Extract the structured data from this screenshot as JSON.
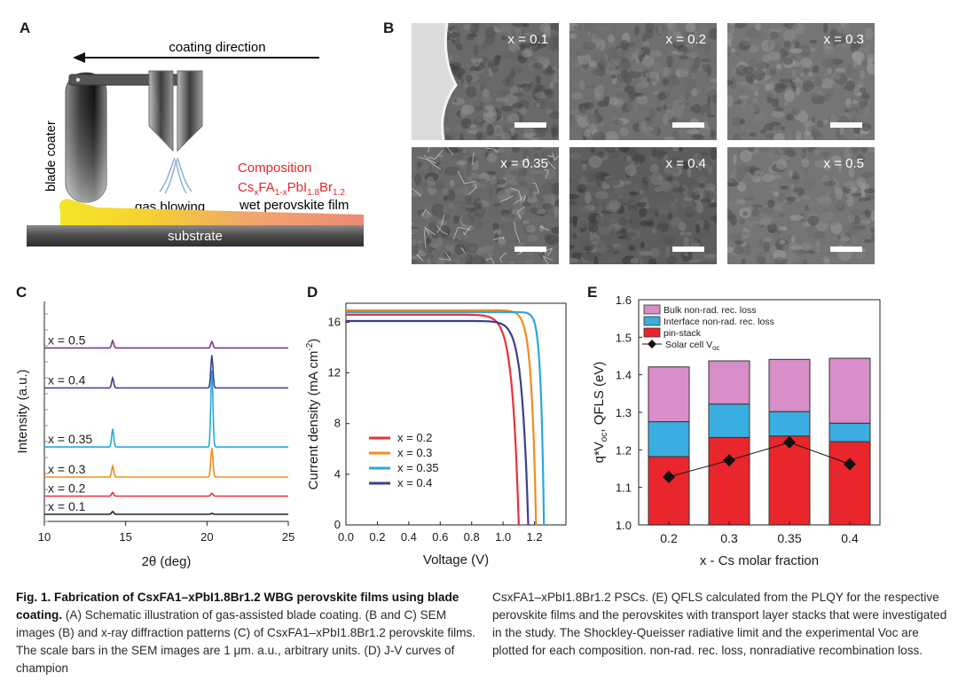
{
  "panelA": {
    "letter": "A",
    "coating_direction": "coating direction",
    "blade_coater": "blade coater",
    "gas_blowing": "gas blowing",
    "composition_label": "Composition",
    "composition_formula": "CsxFA1-xPbI1.8Br1.2",
    "wet_film": "wet perovskite film",
    "substrate": "substrate"
  },
  "panelB": {
    "letter": "B",
    "images": [
      {
        "label": "x = 0.1"
      },
      {
        "label": "x = 0.2"
      },
      {
        "label": "x = 0.3"
      },
      {
        "label": "x = 0.35"
      },
      {
        "label": "x = 0.4"
      },
      {
        "label": "x = 0.5"
      }
    ]
  },
  "panelC": {
    "letter": "C"
  },
  "panelD": {
    "letter": "D"
  },
  "panelE": {
    "letter": "E"
  },
  "chart_data": [
    {
      "id": "C",
      "type": "line",
      "title": "",
      "xlabel": "2θ (deg)",
      "ylabel": "Intensity (a.u.)",
      "xlim": [
        10,
        25
      ],
      "xticks": [
        10,
        15,
        20,
        25
      ],
      "series": [
        {
          "name": "x = 0.1",
          "color": "#222222",
          "baseline": 0,
          "peaks": [
            {
              "x": 14.2,
              "h": 0.15
            },
            {
              "x": 20.3,
              "h": 0.05
            }
          ]
        },
        {
          "name": "x = 0.2",
          "color": "#e8303a",
          "baseline": 1,
          "peaks": [
            {
              "x": 14.2,
              "h": 0.2
            },
            {
              "x": 20.3,
              "h": 0.15
            }
          ]
        },
        {
          "name": "x = 0.3",
          "color": "#f08c1e",
          "baseline": 2.05,
          "peaks": [
            {
              "x": 14.2,
              "h": 0.6
            },
            {
              "x": 20.3,
              "h": 1.6
            }
          ]
        },
        {
          "name": "x = 0.35",
          "color": "#2aa8dc",
          "baseline": 3.7,
          "peaks": [
            {
              "x": 14.2,
              "h": 1.0
            },
            {
              "x": 20.3,
              "h": 4.2
            }
          ]
        },
        {
          "name": "x = 0.4",
          "color": "#3a3f8f",
          "baseline": 6.95,
          "peaks": [
            {
              "x": 14.2,
              "h": 0.55
            },
            {
              "x": 20.3,
              "h": 1.8
            }
          ]
        },
        {
          "name": "x = 0.5",
          "color": "#7d3a8c",
          "baseline": 9.15,
          "peaks": [
            {
              "x": 14.2,
              "h": 0.4
            },
            {
              "x": 20.3,
              "h": 0.35
            }
          ]
        }
      ]
    },
    {
      "id": "D",
      "type": "line",
      "title": "",
      "xlabel": "Voltage (V)",
      "ylabel": "Current density (mA cm-2)",
      "xlim": [
        0,
        1.4
      ],
      "ylim": [
        0,
        17.5
      ],
      "xticks": [
        0.0,
        0.2,
        0.4,
        0.6,
        0.8,
        1.0,
        1.2
      ],
      "yticks": [
        0,
        4,
        8,
        12,
        16
      ],
      "legend": "center-left",
      "series": [
        {
          "name": "x = 0.2",
          "color": "#e8303a",
          "jsc": 16.6,
          "voc": 1.1,
          "n": 0.042
        },
        {
          "name": "x = 0.3",
          "color": "#f08c1e",
          "jsc": 16.95,
          "voc": 1.21,
          "n": 0.03
        },
        {
          "name": "x = 0.35",
          "color": "#2aa8dc",
          "jsc": 16.8,
          "voc": 1.26,
          "n": 0.02
        },
        {
          "name": "x = 0.4",
          "color": "#3a3f8f",
          "jsc": 16.1,
          "voc": 1.16,
          "n": 0.04
        }
      ]
    },
    {
      "id": "E",
      "type": "bar",
      "title": "",
      "xlabel": "x - Cs molar fraction",
      "ylabel": "q*Voc, QFLS (eV)",
      "ylim": [
        1.0,
        1.6
      ],
      "yticks": [
        1.0,
        1.1,
        1.2,
        1.3,
        1.4,
        1.5,
        1.6
      ],
      "categories": [
        "0.2",
        "0.3",
        "0.35",
        "0.4"
      ],
      "legend": "top-left",
      "stack_series": [
        {
          "name": "pin-stack",
          "color": "#e8262c",
          "values": [
            1.182,
            1.233,
            1.237,
            1.222
          ]
        },
        {
          "name": "Interface non-rad. rec. loss",
          "color": "#3aaee0",
          "values": [
            1.275,
            1.322,
            1.302,
            1.271
          ]
        },
        {
          "name": "Bulk non-rad. rec. loss",
          "color": "#d88ec8",
          "values": [
            1.421,
            1.437,
            1.441,
            1.444
          ]
        }
      ],
      "line_series": {
        "name": "Solar cell Voc",
        "color": "#111111",
        "values": [
          1.128,
          1.172,
          1.22,
          1.162
        ]
      }
    }
  ],
  "caption": {
    "left": [
      {
        "b": true,
        "t": "Fig. 1. Fabrication of CsxFA1–xPbI1.8Br1.2 WBG perovskite films using blade coating."
      },
      {
        "b": false,
        "t": " (A) Schematic illustration of gas-assisted blade coating. (B and C) SEM images (B) and x-ray diffraction patterns (C) of CsxFA1–xPbI1.8Br1.2 perovskite films. The scale bars in the SEM images are 1 μm. a.u., arbitrary units. (D) J-V curves of champion"
      }
    ],
    "right": "CsxFA1–xPbI1.8Br1.2 PSCs. (E) QFLS calculated from the PLQY for the respective perovskite films and the perovskites with transport layer stacks that were investigated in the study. The Shockley-Queisser radiative limit and the experimental Voc are plotted for each composition. non-rad. rec. loss, nonradiative recombination loss."
  }
}
